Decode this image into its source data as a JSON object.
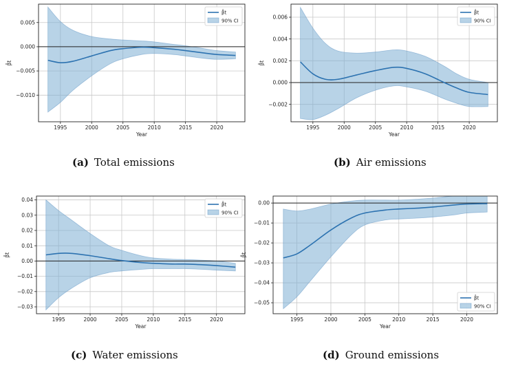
{
  "chart_data": [
    {
      "type": "line",
      "panel": "a",
      "caption_label": "(a)",
      "caption_text": "Total emissions",
      "xlabel": "Year",
      "ylabel": "β̂t",
      "xlim": [
        1991.5,
        2024.5
      ],
      "ylim": [
        -0.0155,
        0.0088
      ],
      "xticks": [
        1995,
        2000,
        2005,
        2010,
        2015,
        2020
      ],
      "yticks": [
        -0.01,
        -0.005,
        0.0,
        0.005
      ],
      "ytick_labels": [
        "−0.010",
        "−0.005",
        "0.000",
        "0.005"
      ],
      "grid": true,
      "legend_position": "top-right",
      "reference_line": 0,
      "series": [
        {
          "name": "β̂t",
          "kind": "line",
          "x": [
            1993,
            1995,
            1997,
            2000,
            2003,
            2005,
            2008,
            2010,
            2013,
            2015,
            2018,
            2020,
            2023
          ],
          "y": [
            -0.0028,
            -0.0033,
            -0.003,
            -0.0019,
            -0.0008,
            -0.0004,
            -0.0001,
            -0.0002,
            -0.0005,
            -0.0008,
            -0.0013,
            -0.0016,
            -0.0018
          ]
        },
        {
          "name": "90% CI",
          "kind": "band",
          "x": [
            1993,
            1995,
            1997,
            2000,
            2003,
            2005,
            2008,
            2010,
            2013,
            2015,
            2018,
            2020,
            2023
          ],
          "lower": [
            -0.0135,
            -0.0115,
            -0.009,
            -0.006,
            -0.0035,
            -0.0025,
            -0.0016,
            -0.0014,
            -0.0016,
            -0.0019,
            -0.0024,
            -0.0026,
            -0.0025
          ],
          "upper": [
            0.0082,
            0.0052,
            0.0034,
            0.0021,
            0.0016,
            0.0014,
            0.0012,
            0.001,
            0.0005,
            0.0002,
            -0.0004,
            -0.0008,
            -0.0011
          ]
        }
      ]
    },
    {
      "type": "line",
      "panel": "b",
      "caption_label": "(b)",
      "caption_text": "Air emissions",
      "xlabel": "Year",
      "ylabel": "β̂t",
      "xlim": [
        1991.5,
        2024.5
      ],
      "ylim": [
        -0.0036,
        0.0072
      ],
      "xticks": [
        1995,
        2000,
        2005,
        2010,
        2015,
        2020
      ],
      "yticks": [
        -0.002,
        0.0,
        0.002,
        0.004,
        0.006
      ],
      "ytick_labels": [
        "−0.002",
        "0.000",
        "0.002",
        "0.004",
        "0.006"
      ],
      "grid": true,
      "legend_position": "top-right",
      "reference_line": 0,
      "series": [
        {
          "name": "β̂t",
          "kind": "line",
          "x": [
            1993,
            1995,
            1997,
            1999,
            2002,
            2005,
            2008,
            2010,
            2013,
            2016,
            2018,
            2020,
            2023
          ],
          "y": [
            0.0019,
            0.0008,
            0.0003,
            0.0003,
            0.0007,
            0.0011,
            0.0014,
            0.0013,
            0.0008,
            0.0,
            -0.0005,
            -0.0009,
            -0.0011
          ]
        },
        {
          "name": "90% CI",
          "kind": "band",
          "x": [
            1993,
            1995,
            1997,
            1999,
            2002,
            2005,
            2008,
            2010,
            2013,
            2016,
            2018,
            2020,
            2023
          ],
          "lower": [
            -0.0033,
            -0.0034,
            -0.003,
            -0.0024,
            -0.0014,
            -0.0007,
            -0.0003,
            -0.0004,
            -0.0008,
            -0.0015,
            -0.0019,
            -0.0022,
            -0.0022
          ],
          "upper": [
            0.0069,
            0.005,
            0.0036,
            0.0029,
            0.0027,
            0.0028,
            0.003,
            0.0029,
            0.0024,
            0.0015,
            0.0008,
            0.0003,
            0.0
          ]
        }
      ]
    },
    {
      "type": "line",
      "panel": "c",
      "caption_label": "(c)",
      "caption_text": "Water emissions",
      "xlabel": "Year",
      "ylabel": "β̂t",
      "xlim": [
        1991.5,
        2024.5
      ],
      "ylim": [
        -0.0345,
        0.0425
      ],
      "xticks": [
        1995,
        2000,
        2005,
        2010,
        2015,
        2020
      ],
      "yticks": [
        -0.03,
        -0.02,
        -0.01,
        0.0,
        0.01,
        0.02,
        0.03,
        0.04
      ],
      "ytick_labels": [
        "−0.03",
        "−0.02",
        "−0.01",
        "0.00",
        "0.01",
        "0.02",
        "0.03",
        "0.04"
      ],
      "grid": true,
      "legend_position": "top-right",
      "reference_line": 0,
      "series": [
        {
          "name": "β̂t",
          "kind": "line",
          "x": [
            1993,
            1995,
            1997,
            2000,
            2003,
            2005,
            2008,
            2010,
            2013,
            2015,
            2018,
            2020,
            2023
          ],
          "y": [
            0.004,
            0.005,
            0.005,
            0.0035,
            0.0015,
            0.0003,
            -0.001,
            -0.0015,
            -0.002,
            -0.002,
            -0.0025,
            -0.003,
            -0.004
          ]
        },
        {
          "name": "90% CI",
          "kind": "band",
          "x": [
            1993,
            1995,
            1997,
            2000,
            2003,
            2005,
            2008,
            2010,
            2013,
            2015,
            2018,
            2020,
            2023
          ],
          "lower": [
            -0.032,
            -0.024,
            -0.018,
            -0.011,
            -0.0075,
            -0.0065,
            -0.0055,
            -0.005,
            -0.005,
            -0.005,
            -0.0055,
            -0.006,
            -0.0065
          ],
          "upper": [
            0.04,
            0.033,
            0.027,
            0.018,
            0.01,
            0.007,
            0.0035,
            0.002,
            0.0012,
            0.001,
            0.0005,
            0.0,
            -0.0015
          ]
        }
      ]
    },
    {
      "type": "line",
      "panel": "d",
      "caption_label": "(d)",
      "caption_text": "Ground emissions",
      "xlabel": "Year",
      "ylabel": "β̂t",
      "xlim": [
        1991.5,
        2024.5
      ],
      "ylim": [
        -0.0555,
        0.0035
      ],
      "xticks": [
        1995,
        2000,
        2005,
        2010,
        2015,
        2020
      ],
      "yticks": [
        -0.05,
        -0.04,
        -0.03,
        -0.02,
        -0.01,
        0.0
      ],
      "ytick_labels": [
        "−0.05",
        "−0.04",
        "−0.03",
        "−0.02",
        "−0.01",
        "0.00"
      ],
      "grid": true,
      "legend_position": "bottom-right",
      "reference_line": 0,
      "series": [
        {
          "name": "β̂t",
          "kind": "line",
          "x": [
            1993,
            1995,
            1997,
            2000,
            2003,
            2005,
            2008,
            2010,
            2013,
            2015,
            2018,
            2020,
            2023
          ],
          "y": [
            -0.0275,
            -0.0255,
            -0.021,
            -0.0135,
            -0.0075,
            -0.005,
            -0.0035,
            -0.003,
            -0.0025,
            -0.002,
            -0.001,
            -0.0005,
            -0.0003
          ]
        },
        {
          "name": "90% CI",
          "kind": "band",
          "x": [
            1993,
            1995,
            1997,
            2000,
            2003,
            2005,
            2008,
            2010,
            2013,
            2015,
            2018,
            2020,
            2023
          ],
          "lower": [
            -0.053,
            -0.047,
            -0.039,
            -0.027,
            -0.016,
            -0.011,
            -0.0085,
            -0.008,
            -0.0075,
            -0.007,
            -0.006,
            -0.005,
            -0.0045
          ],
          "upper": [
            -0.003,
            -0.004,
            -0.003,
            -0.0005,
            0.001,
            0.0015,
            0.0015,
            0.0015,
            0.002,
            0.0025,
            0.0035,
            0.0035,
            0.0035
          ]
        }
      ]
    }
  ]
}
